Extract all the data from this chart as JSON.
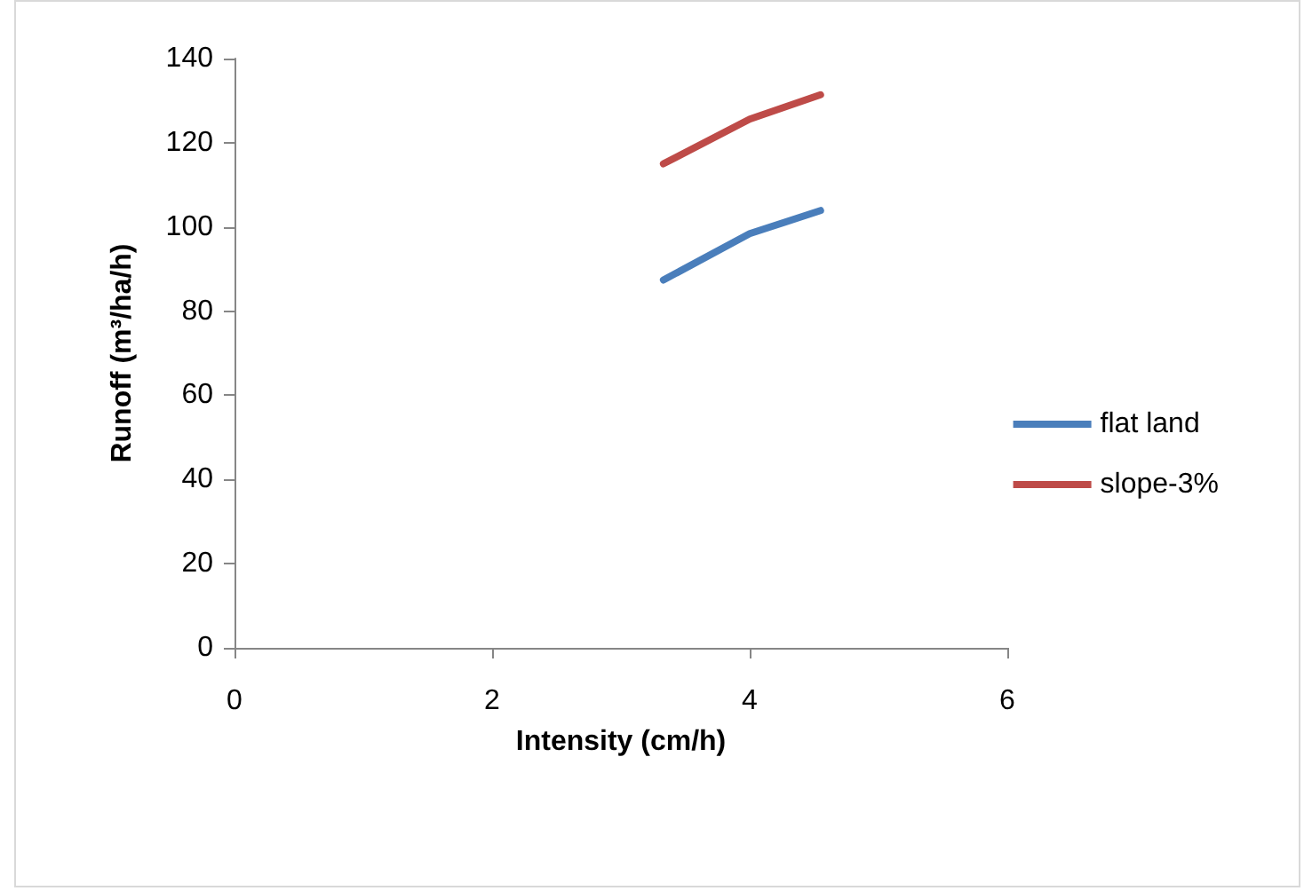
{
  "chart_data": {
    "type": "line",
    "xlabel": "Intensity (cm/h)",
    "ylabel": "Runoff (m³/ha/h)",
    "x": [
      3.33,
      4,
      4.55
    ],
    "series": [
      {
        "name": "flat land",
        "color": "#4a7ebb",
        "values": [
          87.4,
          98.4,
          103.9
        ]
      },
      {
        "name": "slope-3%",
        "color": "#be4b48",
        "values": [
          115,
          125.6,
          131.4
        ]
      }
    ],
    "xlim": [
      0,
      6
    ],
    "xticks": [
      0,
      2,
      4,
      6
    ],
    "ylim": [
      0,
      140
    ],
    "yticks": [
      0,
      20,
      40,
      60,
      80,
      100,
      120,
      140
    ],
    "grid": false,
    "legend": "right",
    "marker": "none",
    "line_style": "solid"
  }
}
